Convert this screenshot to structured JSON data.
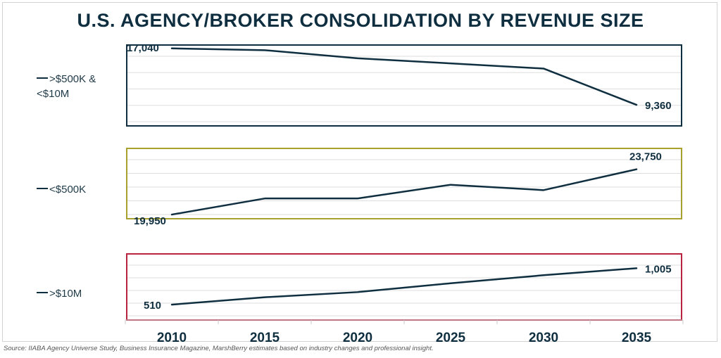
{
  "title": "U.S. AGENCY/BROKER CONSOLIDATION BY REVENUE SIZE",
  "source": "Source: IIABA Agency Universe Study, Business Insurance Magazine, MarshBerry estimates based on industry changes and professional insight.",
  "legend": {
    "mid_line1": ">$500K &",
    "mid_line2": "<$10M",
    "small": "<$500K",
    "large": ">$10M"
  },
  "chart_data": {
    "type": "line",
    "title": "U.S. AGENCY/BROKER CONSOLIDATION BY REVENUE SIZE",
    "x": [
      2010,
      2015,
      2020,
      2025,
      2030,
      2035
    ],
    "x_tick_labels": [
      "2010",
      "2015",
      "2020",
      "2025",
      "2030",
      "2035"
    ],
    "grid": true,
    "line_color": "#0f2f40",
    "panels": [
      {
        "series_name": ">$500K & <$10M",
        "border_color": "#0f2f40",
        "values": [
          17040,
          16800,
          15700,
          15000,
          14300,
          9360
        ],
        "ylim": [
          6500,
          17500
        ],
        "labels": [
          {
            "index": 0,
            "text": "17,040"
          },
          {
            "index": 5,
            "text": "9,360"
          }
        ]
      },
      {
        "series_name": "<$500K",
        "border_color": "#a8a12e",
        "values": [
          19950,
          21300,
          21300,
          22450,
          22000,
          23750
        ],
        "ylim": [
          19600,
          25500
        ],
        "labels": [
          {
            "index": 0,
            "text": "19,950"
          },
          {
            "index": 5,
            "text": "23,750"
          }
        ]
      },
      {
        "series_name": ">$10M",
        "border_color": "#b8233f",
        "values": [
          510,
          610,
          680,
          800,
          910,
          1005
        ],
        "ylim": [
          300,
          1200
        ],
        "labels": [
          {
            "index": 0,
            "text": "510"
          },
          {
            "index": 5,
            "text": "1,005"
          }
        ]
      }
    ]
  }
}
